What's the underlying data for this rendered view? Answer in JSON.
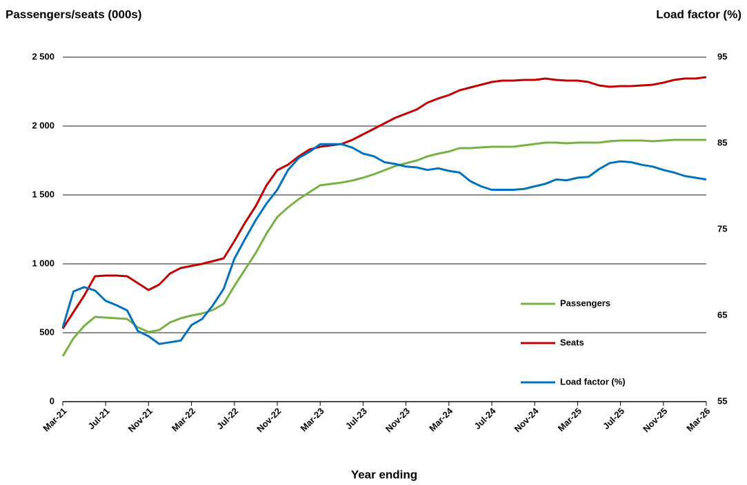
{
  "chart_data": {
    "type": "line",
    "y_label": "Passengers/seats (000s)",
    "y2_label": "Load factor (%)",
    "x_label": "Year ending",
    "categories": [
      "Mar-21",
      null,
      null,
      null,
      "Jul-21",
      null,
      null,
      null,
      "Nov-21",
      null,
      null,
      null,
      "Mar-22",
      null,
      null,
      null,
      "Jul-22",
      null,
      null,
      null,
      "Nov-22",
      null,
      null,
      null,
      "Mar-23",
      null,
      null,
      null,
      "Jul-23",
      null,
      null,
      null,
      "Nov-23",
      null,
      null,
      null,
      "Mar-24",
      null,
      null,
      null,
      "Jul-24",
      null,
      null,
      null,
      "Nov-24",
      null,
      null,
      null,
      "Mar-25",
      null,
      null,
      null,
      "Jul-25",
      null,
      null,
      null,
      "Nov-25",
      null,
      null,
      null,
      "Mar-26"
    ],
    "ylim": [
      0,
      2500
    ],
    "yticks": [
      0,
      500,
      {
        "value": 1000,
        "label": "1 000"
      },
      {
        "value": 1500,
        "label": "1 500"
      },
      {
        "value": 2000,
        "label": "2 000"
      },
      {
        "value": 2500,
        "label": "2 500"
      }
    ],
    "y2lim": [
      55,
      95
    ],
    "y2ticks": [
      55,
      65,
      75,
      85,
      95
    ],
    "grid": true,
    "legend": "right",
    "series": [
      {
        "name": "Passengers",
        "color": "#77b043",
        "values": [
          330,
          460,
          550,
          615,
          610,
          605,
          600,
          540,
          505,
          520,
          575,
          605,
          625,
          640,
          665,
          710,
          840,
          960,
          1080,
          1220,
          1340,
          1410,
          1470,
          1520,
          1570,
          1580,
          1590,
          1605,
          1625,
          1650,
          1680,
          1710,
          1730,
          1750,
          1780,
          1800,
          1815,
          1840,
          1840,
          1845,
          1850,
          1850,
          1850,
          1860,
          1870,
          1880,
          1880,
          1875,
          1880,
          1880,
          1880,
          1890,
          1895,
          1895,
          1895,
          1890,
          1895,
          1900,
          1900,
          1900,
          1900
        ]
      },
      {
        "name": "Seats",
        "color": "#c00000",
        "values": [
          530,
          650,
          770,
          910,
          915,
          915,
          910,
          860,
          810,
          850,
          930,
          970,
          985,
          1000,
          1020,
          1040,
          1165,
          1300,
          1420,
          1570,
          1680,
          1720,
          1780,
          1830,
          1850,
          1860,
          1870,
          1900,
          1940,
          1980,
          2020,
          2060,
          2090,
          2120,
          2170,
          2200,
          2225,
          2260,
          2280,
          2300,
          2320,
          2330,
          2330,
          2335,
          2335,
          2345,
          2335,
          2330,
          2330,
          2320,
          2295,
          2285,
          2290,
          2290,
          2295,
          2300,
          2315,
          2335,
          2345,
          2345,
          2355
        ]
      },
      {
        "name": "Load factor (%)",
        "color": "#0070c0",
        "axis": "y2",
        "values": [
          63.6,
          67.8,
          68.3,
          67.9,
          66.7,
          66.2,
          65.6,
          63.2,
          62.6,
          61.7,
          61.9,
          62.1,
          63.9,
          64.6,
          66.2,
          68.1,
          71.6,
          73.9,
          76.1,
          78,
          79.6,
          81.9,
          83.3,
          84,
          84.9,
          84.9,
          84.9,
          84.5,
          83.8,
          83.5,
          82.8,
          82.6,
          82.3,
          82.2,
          81.9,
          82.1,
          81.8,
          81.6,
          80.6,
          80,
          79.6,
          79.6,
          79.6,
          79.7,
          80,
          80.3,
          80.8,
          80.7,
          81,
          81.1,
          82,
          82.7,
          82.9,
          82.8,
          82.5,
          82.3,
          81.9,
          81.6,
          81.2,
          81,
          80.8
        ]
      }
    ]
  }
}
